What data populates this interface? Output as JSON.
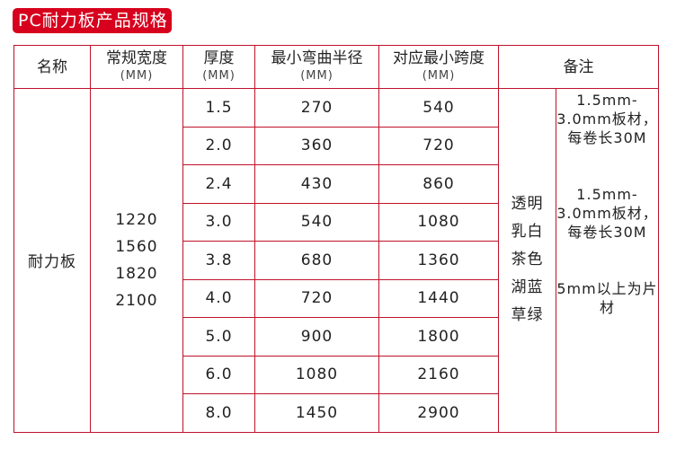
{
  "title": "PC耐力板产品规格",
  "headers": [
    {
      "label": "名称",
      "unit": ""
    },
    {
      "label": "常规宽度",
      "unit": "(MM)"
    },
    {
      "label": "厚度",
      "unit": "(MM)"
    },
    {
      "label": "最小弯曲半径",
      "unit": "(MM)"
    },
    {
      "label": "对应最小跨度",
      "unit": "(MM)"
    },
    {
      "label": "备注",
      "unit": ""
    }
  ],
  "name": "耐力板",
  "widths": [
    "1220",
    "1560",
    "1820",
    "2100"
  ],
  "rows": [
    {
      "thickness": "1.5",
      "radius": "270",
      "span": "540"
    },
    {
      "thickness": "2.0",
      "radius": "360",
      "span": "720"
    },
    {
      "thickness": "2.4",
      "radius": "430",
      "span": "860"
    },
    {
      "thickness": "3.0",
      "radius": "540",
      "span": "1080"
    },
    {
      "thickness": "3.8",
      "radius": "680",
      "span": "1360"
    },
    {
      "thickness": "4.0",
      "radius": "720",
      "span": "1440"
    },
    {
      "thickness": "5.0",
      "radius": "900",
      "span": "1800"
    },
    {
      "thickness": "6.0",
      "radius": "1080",
      "span": "2160"
    },
    {
      "thickness": "8.0",
      "radius": "1450",
      "span": "2900"
    }
  ],
  "colors": [
    "透明",
    "乳白",
    "茶色",
    "湖蓝",
    "草绿"
  ],
  "notes": [
    "1.5mm-3.0mm板材，每卷长30M",
    "1.5mm-3.0mm板材，每卷长30M",
    "5mm以上为片材"
  ],
  "border_color": "#c0122a",
  "accent_color": "#d7001d"
}
